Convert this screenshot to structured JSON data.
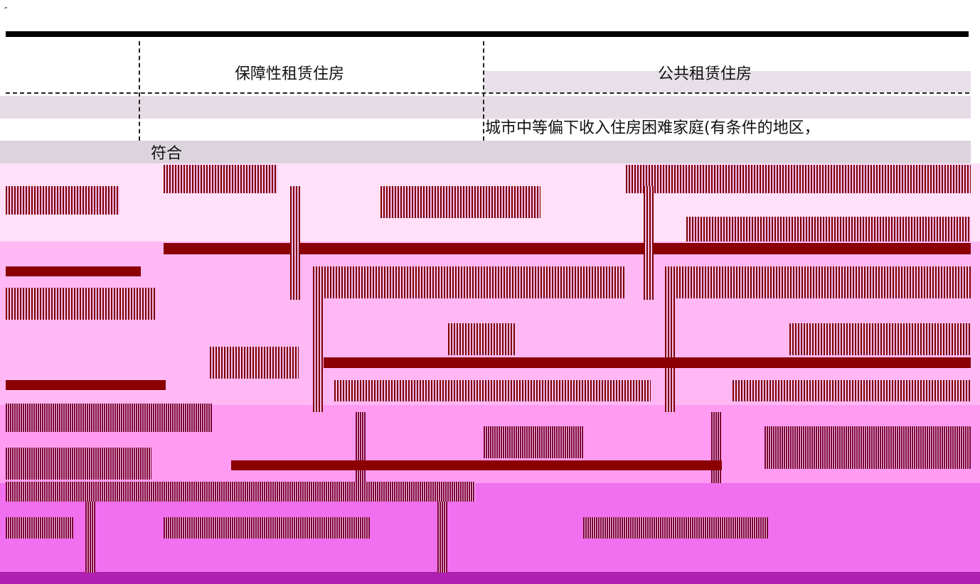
{
  "mark": "″",
  "table": {
    "header": [
      "保障性租赁住房",
      "公共租赁住房"
    ],
    "rows": [
      [
        "符合",
        "城市中等偏下收入住房困难家庭(有条件的地区，"
      ]
    ]
  }
}
